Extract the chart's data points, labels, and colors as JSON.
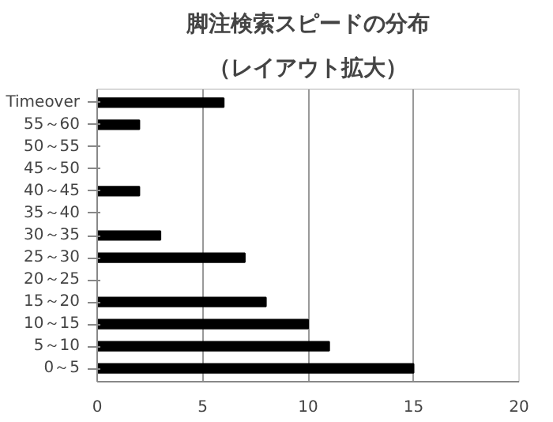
{
  "chart_data": {
    "type": "bar",
    "orientation": "horizontal",
    "title": "脚注検索スピードの分布",
    "subtitle": "（レイアウト拡大）",
    "categories": [
      "Timeover",
      "55～60",
      "50～55",
      "45～50",
      "40～45",
      "35～40",
      "30～35",
      "25～30",
      "20～25",
      "15～20",
      "10～15",
      "5～10",
      "0～5"
    ],
    "values": [
      6,
      2,
      0,
      0,
      2,
      0,
      3,
      7,
      0,
      8,
      10,
      11,
      15
    ],
    "color": "#000000",
    "xlim": [
      0,
      20
    ],
    "xticks": [
      0,
      5,
      10,
      15,
      20
    ],
    "grid": "x"
  }
}
